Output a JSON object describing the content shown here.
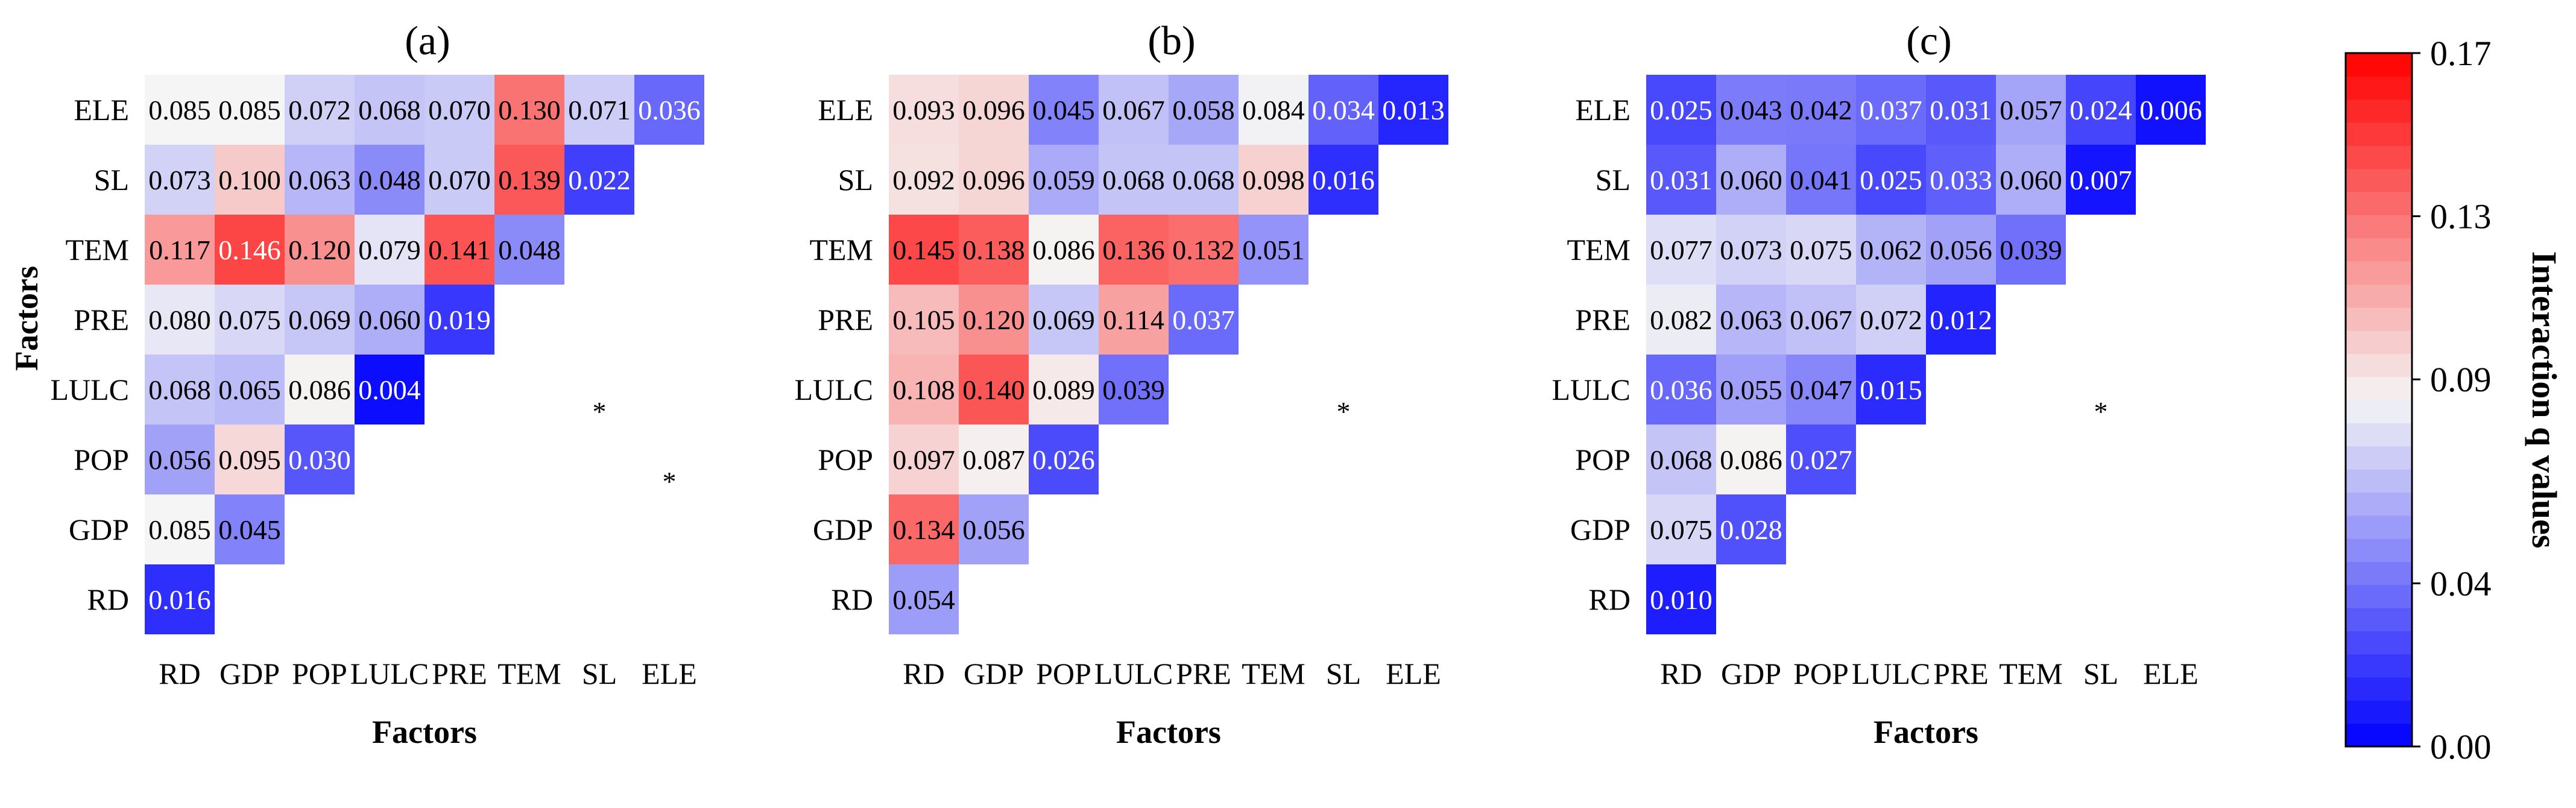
{
  "chart_data": {
    "type": "heatmap",
    "factors": [
      "RD",
      "GDP",
      "POP",
      "LULC",
      "PRE",
      "TEM",
      "SL",
      "ELE"
    ],
    "axis_label": "Factors",
    "panels": [
      {
        "title": "(a)",
        "show_ylabel": true,
        "values": [
          [
            0.016
          ],
          [
            0.085,
            0.045
          ],
          [
            0.056,
            0.095,
            0.03
          ],
          [
            0.068,
            0.065,
            0.086,
            0.004
          ],
          [
            0.08,
            0.075,
            0.069,
            0.06,
            0.019
          ],
          [
            0.117,
            0.146,
            0.12,
            0.079,
            0.141,
            0.048
          ],
          [
            0.073,
            0.1,
            0.063,
            0.048,
            0.07,
            0.139,
            0.022
          ],
          [
            0.085,
            0.085,
            0.072,
            0.068,
            0.07,
            0.13,
            0.071,
            0.036
          ]
        ],
        "labels": [
          [
            "0.016"
          ],
          [
            "0.085",
            "0.045"
          ],
          [
            "0.056",
            "0.095",
            "0.030"
          ],
          [
            "0.068",
            "0.065",
            "0.086",
            "0.004"
          ],
          [
            "0.080",
            "0.075",
            "0.069",
            "0.060",
            "0.019"
          ],
          [
            "0.117",
            "0.146",
            "0.120",
            "0.079",
            "0.141",
            "0.048"
          ],
          [
            "0.073",
            "0.100",
            "0.063",
            "0.048",
            "0.070",
            "0.139",
            "0.022"
          ],
          [
            "0.085",
            "0.085",
            "0.072",
            "0.068",
            "0.070",
            "0.130",
            "0.071",
            "0.036"
          ]
        ],
        "significance": [
          {
            "col": "SL",
            "row": "LULC",
            "mark": "*"
          },
          {
            "col": "ELE",
            "row": "POP",
            "mark": "*"
          }
        ]
      },
      {
        "title": "(b)",
        "show_ylabel": false,
        "values": [
          [
            0.054
          ],
          [
            0.134,
            0.056
          ],
          [
            0.097,
            0.087,
            0.026
          ],
          [
            0.108,
            0.14,
            0.089,
            0.039
          ],
          [
            0.105,
            0.12,
            0.069,
            0.114,
            0.037
          ],
          [
            0.145,
            0.138,
            0.086,
            0.136,
            0.132,
            0.051
          ],
          [
            0.092,
            0.096,
            0.059,
            0.068,
            0.068,
            0.098,
            0.016
          ],
          [
            0.093,
            0.096,
            0.045,
            0.067,
            0.058,
            0.084,
            0.034,
            0.013
          ]
        ],
        "labels": [
          [
            "0.054"
          ],
          [
            "0.134",
            "0.056"
          ],
          [
            "0.097",
            "0.087",
            "0.026"
          ],
          [
            "0.108",
            "0.140",
            "0.089",
            "0.039"
          ],
          [
            "0.105",
            "0.120",
            "0.069",
            "0.114",
            "0.037"
          ],
          [
            "0.145",
            "0.138",
            "0.086",
            "0.136",
            "0.132",
            "0.051"
          ],
          [
            "0.092",
            "0.096",
            "0.059",
            "0.068",
            "0.068",
            "0.098",
            "0.016"
          ],
          [
            "0.093",
            "0.096",
            "0.045",
            "0.067",
            "0.058",
            "0.084",
            "0.034",
            "0.013"
          ]
        ],
        "significance": [
          {
            "col": "SL",
            "row": "LULC",
            "mark": "*"
          }
        ]
      },
      {
        "title": "(c)",
        "show_ylabel": false,
        "values": [
          [
            0.01
          ],
          [
            0.075,
            0.028
          ],
          [
            0.068,
            0.086,
            0.027
          ],
          [
            0.036,
            0.055,
            0.047,
            0.015
          ],
          [
            0.082,
            0.063,
            0.067,
            0.072,
            0.012
          ],
          [
            0.077,
            0.073,
            0.075,
            0.062,
            0.056,
            0.039
          ],
          [
            0.031,
            0.06,
            0.041,
            0.025,
            0.033,
            0.06,
            0.007
          ],
          [
            0.025,
            0.043,
            0.042,
            0.037,
            0.031,
            0.057,
            0.024,
            0.006
          ]
        ],
        "labels": [
          [
            "0.010"
          ],
          [
            "0.075",
            "0.028"
          ],
          [
            "0.068",
            "0.086",
            "0.027"
          ],
          [
            "0.036",
            "0.055",
            "0.047",
            "0.015"
          ],
          [
            "0.082",
            "0.063",
            "0.067",
            "0.072",
            "0.012"
          ],
          [
            "0.077",
            "0.073",
            "0.075",
            "0.062",
            "0.056",
            "0.039"
          ],
          [
            "0.031",
            "0.060",
            "0.041",
            "0.025",
            "0.033",
            "0.060",
            "0.007"
          ],
          [
            "0.025",
            "0.043",
            "0.042",
            "0.037",
            "0.031",
            "0.057",
            "0.024",
            "0.006"
          ]
        ],
        "significance": [
          {
            "col": "SL",
            "row": "LULC",
            "mark": "*"
          }
        ]
      }
    ],
    "colorbar": {
      "title": "Interaction q values",
      "range": [
        0,
        0.17
      ],
      "midpoint": 0.085,
      "ticks": [
        0.0,
        0.04,
        0.09,
        0.13,
        0.17
      ],
      "tick_labels": [
        "0.00",
        "0.04",
        "0.09",
        "0.13",
        "0.17"
      ],
      "colors": {
        "low": "#0000ff",
        "mid": "#f5f5f5",
        "high": "#ff0000"
      },
      "steps": 30
    }
  }
}
